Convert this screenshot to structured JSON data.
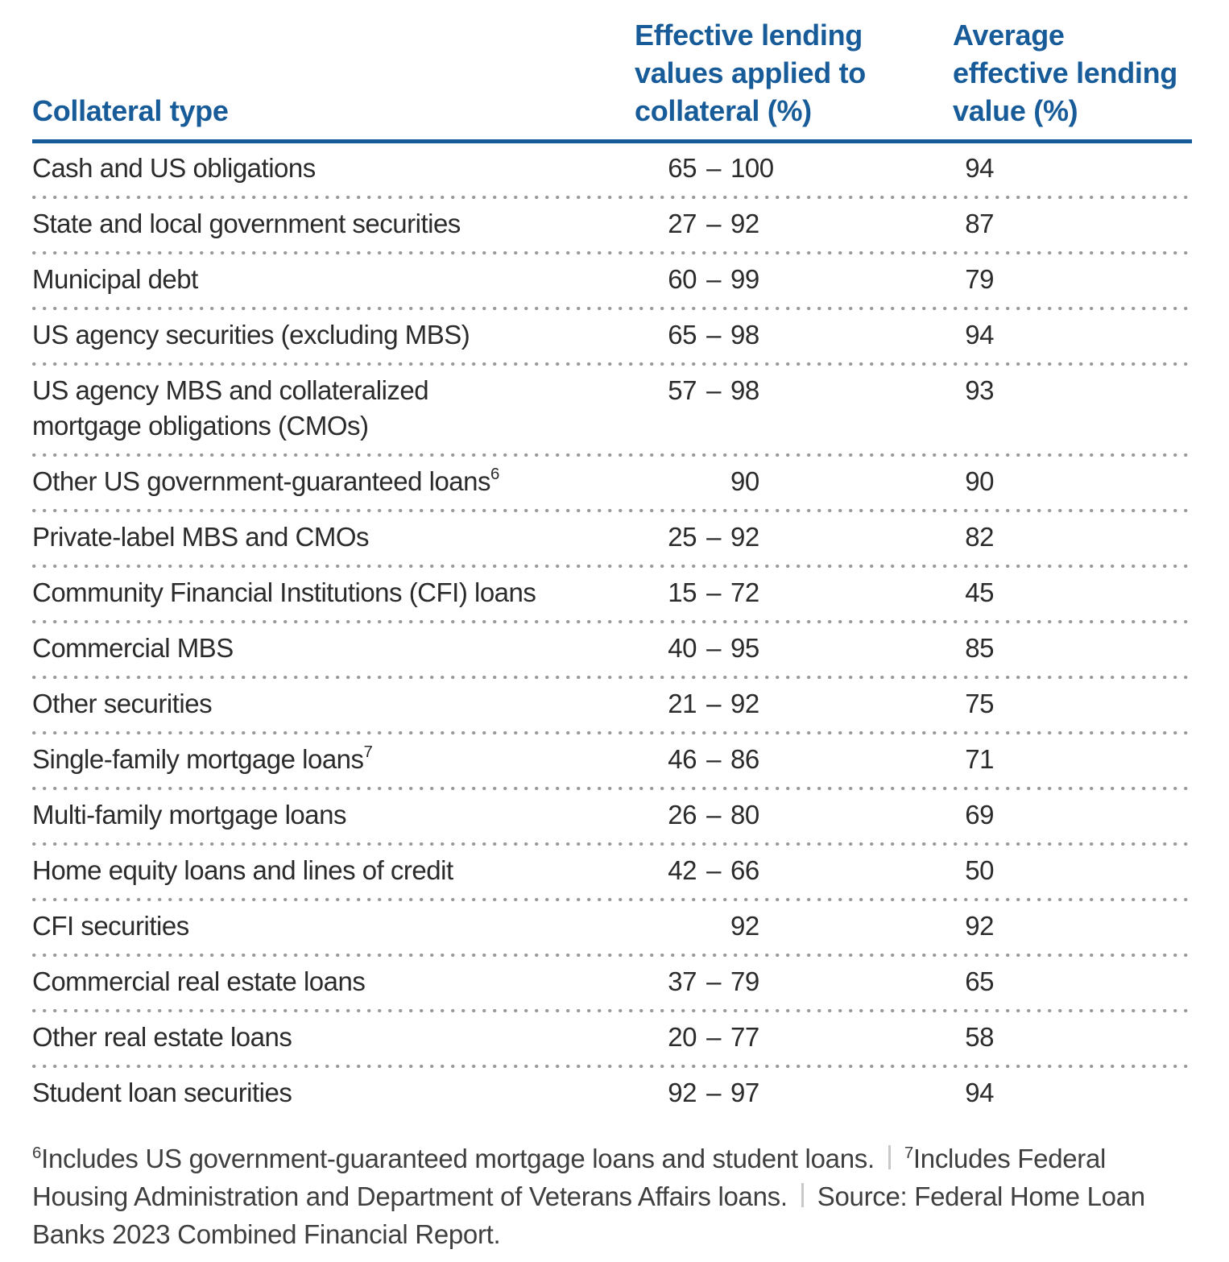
{
  "table": {
    "header": {
      "col1": [
        "Collateral type"
      ],
      "col2": [
        "Effective lending",
        "values applied to",
        "collateral (%)"
      ],
      "col3": [
        "Average",
        "effective lending",
        "value (%)"
      ]
    },
    "dash": "–",
    "rows": [
      {
        "label": "Cash and US obligations",
        "low": "65",
        "high": "100",
        "avg": "94"
      },
      {
        "label": "State and local government securities",
        "low": "27",
        "high": "92",
        "avg": "87"
      },
      {
        "label": "Municipal debt",
        "low": "60",
        "high": "99",
        "avg": "79"
      },
      {
        "label": "US agency securities (excluding MBS)",
        "low": "65",
        "high": "98",
        "avg": "94"
      },
      {
        "label": "US agency MBS and collateralized\nmortgage obligations (CMOs)",
        "low": "57",
        "high": "98",
        "avg": "93"
      },
      {
        "label": "Other US government-guaranteed loans",
        "sup": "6",
        "low": "",
        "high": "90",
        "avg": "90"
      },
      {
        "label": "Private-label MBS and CMOs",
        "low": "25",
        "high": "92",
        "avg": "82"
      },
      {
        "label": "Community Financial Institutions (CFI) loans",
        "low": "15",
        "high": "72",
        "avg": "45"
      },
      {
        "label": "Commercial MBS",
        "low": "40",
        "high": "95",
        "avg": "85"
      },
      {
        "label": "Other securities",
        "low": "21",
        "high": "92",
        "avg": "75"
      },
      {
        "label": "Single-family mortgage loans",
        "sup": "7",
        "low": "46",
        "high": "86",
        "avg": "71"
      },
      {
        "label": "Multi-family mortgage loans",
        "low": "26",
        "high": "80",
        "avg": "69"
      },
      {
        "label": "Home equity loans and lines of credit",
        "low": "42",
        "high": "66",
        "avg": "50"
      },
      {
        "label": "CFI securities",
        "low": "",
        "high": "92",
        "avg": "92"
      },
      {
        "label": "Commercial real estate loans",
        "low": "37",
        "high": "79",
        "avg": "65"
      },
      {
        "label": "Other real estate loans",
        "low": "20",
        "high": "77",
        "avg": "58"
      },
      {
        "label": "Student loan securities",
        "low": "92",
        "high": "97",
        "avg": "94"
      }
    ]
  },
  "footnotes": {
    "note6": {
      "sup": "6",
      "text": "Includes US government-guaranteed mortgage loans and student loans."
    },
    "note7": {
      "sup": "7",
      "text": "Includes Federal Housing Administration and Department of Veterans Affairs loans."
    },
    "source": {
      "text": "Source: Federal Home Loan Banks 2023 Combined Financial Report."
    }
  },
  "colors": {
    "accent_blue": "#175b99",
    "body_text": "#2b2b2b",
    "footnote_text": "#3f3f3f",
    "dot_gray": "#9a9a9a",
    "separator_gray": "#c8c8c8"
  }
}
